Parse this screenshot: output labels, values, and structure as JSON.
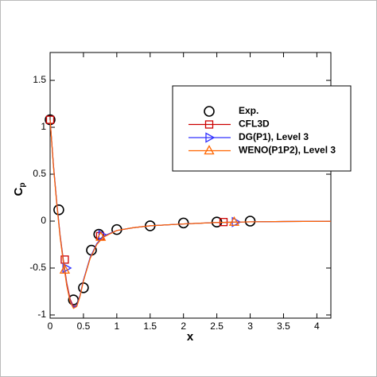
{
  "chart_data": {
    "type": "line",
    "xlabel": "x",
    "ylabel": "C",
    "ylabel_sub": "p",
    "xlim": [
      0,
      4.21
    ],
    "ylim": [
      -1.034,
      1.797
    ],
    "xticks": [
      0,
      0.5,
      1,
      1.5,
      2,
      2.5,
      3,
      3.5,
      4
    ],
    "yticks": [
      -1,
      -0.5,
      0,
      0.5,
      1,
      1.5
    ],
    "series": [
      {
        "name": "Exp.",
        "color": "#000000",
        "marker": "circle",
        "x": [
          0,
          0.13,
          0.35,
          0.5,
          0.62,
          0.73,
          1.0,
          1.5,
          2.0,
          2.5,
          3.0
        ],
        "values": [
          1.08,
          0.12,
          -0.84,
          -0.71,
          -0.31,
          -0.14,
          -0.09,
          -0.05,
          -0.02,
          -0.01,
          0.0
        ]
      },
      {
        "name": "CFL3D",
        "color": "#cc0000",
        "marker": "square",
        "x": [
          0,
          0.05,
          0.1,
          0.15,
          0.2,
          0.25,
          0.3,
          0.35,
          0.4,
          0.45,
          0.5,
          0.6,
          0.7,
          0.8,
          1.0,
          1.25,
          1.5,
          2.0,
          2.5,
          3.0,
          3.5,
          4.21
        ],
        "values": [
          1.08,
          0.6,
          0.2,
          -0.15,
          -0.42,
          -0.66,
          -0.83,
          -0.91,
          -0.9,
          -0.79,
          -0.63,
          -0.39,
          -0.24,
          -0.16,
          -0.1,
          -0.07,
          -0.05,
          -0.03,
          -0.015,
          -0.008,
          -0.004,
          -0.002
        ],
        "markers": {
          "x": [
            0,
            0.22,
            0.75,
            2.6
          ],
          "values": [
            1.08,
            -0.41,
            -0.16,
            -0.01
          ]
        }
      },
      {
        "name": "DG(P1), Level 3",
        "color": "#3333ff",
        "marker": "triangle-right",
        "x": [
          0,
          0.05,
          0.1,
          0.15,
          0.2,
          0.25,
          0.3,
          0.35,
          0.4,
          0.45,
          0.5,
          0.6,
          0.7,
          0.8,
          1.0,
          1.25,
          1.5,
          2.0,
          2.5,
          3.0,
          3.5,
          4.21
        ],
        "values": [
          1.08,
          0.59,
          0.19,
          -0.16,
          -0.44,
          -0.68,
          -0.85,
          -0.92,
          -0.9,
          -0.79,
          -0.63,
          -0.39,
          -0.24,
          -0.16,
          -0.1,
          -0.07,
          -0.05,
          -0.03,
          -0.015,
          -0.008,
          -0.004,
          -0.002
        ],
        "markers": {
          "x": [
            0.24,
            0.78,
            2.78
          ],
          "values": [
            -0.5,
            -0.15,
            -0.01
          ]
        }
      },
      {
        "name": "WENO(P1P2), Level 3",
        "color": "#ff6600",
        "marker": "triangle-up",
        "x": [
          0,
          0.05,
          0.1,
          0.15,
          0.2,
          0.25,
          0.3,
          0.35,
          0.4,
          0.45,
          0.5,
          0.6,
          0.7,
          0.8,
          1.0,
          1.25,
          1.5,
          2.0,
          2.5,
          3.0,
          3.5,
          4.21
        ],
        "values": [
          1.08,
          0.58,
          0.18,
          -0.17,
          -0.45,
          -0.69,
          -0.86,
          -0.93,
          -0.91,
          -0.8,
          -0.64,
          -0.4,
          -0.25,
          -0.17,
          -0.1,
          -0.07,
          -0.05,
          -0.03,
          -0.015,
          -0.008,
          -0.004,
          -0.002
        ],
        "markers": {
          "x": [
            0.22,
            0.76,
            2.76
          ],
          "values": [
            -0.52,
            -0.17,
            -0.01
          ]
        }
      }
    ]
  }
}
